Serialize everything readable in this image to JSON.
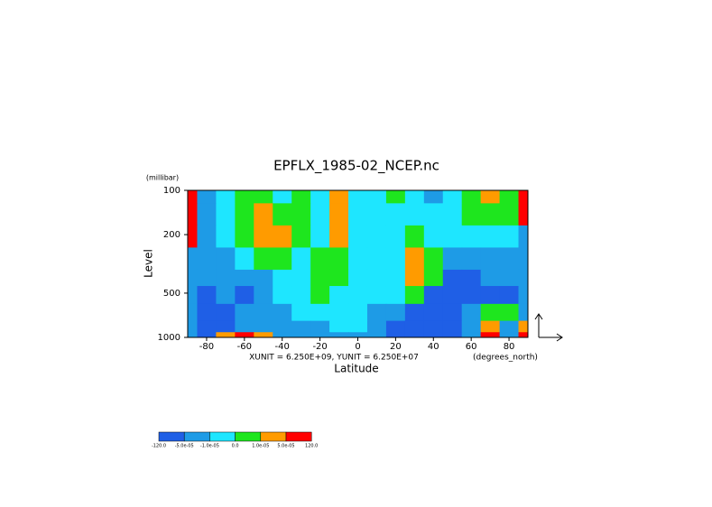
{
  "chart_data": {
    "type": "contour",
    "title": "EPFLX_1985-02_NCEP.nc",
    "y_unit_label": "(millibar)",
    "ylabel": "Level",
    "xlabel": "Latitude",
    "x_unit_label": "(degrees_north)",
    "vector_scale_label": "XUNIT = 6.250E+09, YUNIT = 6.250E+07",
    "xlim": [
      -90,
      90
    ],
    "xticks": [
      -80,
      -60,
      -40,
      -20,
      0,
      20,
      40,
      60,
      80
    ],
    "ylim": [
      1000,
      100
    ],
    "yticks": [
      100,
      200,
      500,
      1000
    ],
    "ylog": true,
    "colorbar": {
      "colors": [
        "#1f5fe6",
        "#1e9be6",
        "#1ee6ff",
        "#1ee61e",
        "#ff9b00",
        "#ff0000"
      ],
      "labels": [
        "-120.0",
        "-5.0e-05",
        "-1.0e-05",
        "0.0",
        "1.0e-05",
        "5.0e-05",
        "120.0"
      ]
    },
    "field": {
      "lat": [
        -90,
        -80,
        -70,
        -60,
        -50,
        -40,
        -30,
        -20,
        -10,
        0,
        10,
        20,
        30,
        40,
        50,
        60,
        70,
        80,
        90
      ],
      "level": [
        100,
        150,
        200,
        300,
        400,
        500,
        700,
        850,
        1000
      ],
      "values": [
        [
          0.0001,
          -3e-05,
          -5e-06,
          5e-06,
          5e-06,
          -5e-06,
          5e-06,
          -5e-06,
          3e-05,
          -5e-06,
          -5e-06,
          5e-06,
          -5e-06,
          -3e-05,
          -5e-06,
          5e-06,
          3e-05,
          5e-06,
          0.0001
        ],
        [
          0.0001,
          -3e-05,
          -5e-06,
          5e-06,
          3e-05,
          5e-06,
          5e-06,
          -5e-06,
          3e-05,
          -5e-06,
          -5e-06,
          -5e-06,
          -5e-06,
          -5e-06,
          -5e-06,
          5e-06,
          5e-06,
          5e-06,
          0.0001
        ],
        [
          0.0001,
          -3e-05,
          -5e-06,
          5e-06,
          3e-05,
          3e-05,
          5e-06,
          -5e-06,
          3e-05,
          -5e-06,
          -5e-06,
          -5e-06,
          5e-06,
          -5e-06,
          -5e-06,
          -5e-06,
          -5e-06,
          -5e-06,
          -3e-05
        ],
        [
          -3e-05,
          -3e-05,
          -3e-05,
          -5e-06,
          5e-06,
          5e-06,
          -5e-06,
          5e-06,
          5e-06,
          -5e-06,
          -5e-06,
          -5e-06,
          3e-05,
          5e-06,
          -3e-05,
          -3e-05,
          -3e-05,
          -3e-05,
          -3e-05
        ],
        [
          -3e-05,
          -3e-05,
          -3e-05,
          -3e-05,
          -3e-05,
          -5e-06,
          -5e-06,
          5e-06,
          5e-06,
          -5e-06,
          -5e-06,
          -5e-06,
          3e-05,
          5e-06,
          -0.0001,
          -0.0001,
          -3e-05,
          -3e-05,
          -3e-05
        ],
        [
          -3e-05,
          -0.0001,
          -3e-05,
          -0.0001,
          -3e-05,
          -5e-06,
          -5e-06,
          5e-06,
          -5e-06,
          -5e-06,
          -5e-06,
          -5e-06,
          5e-06,
          -0.0001,
          -0.0001,
          -0.0001,
          -0.0001,
          -0.0001,
          -3e-05
        ],
        [
          -3e-05,
          -0.0001,
          -0.0001,
          -3e-05,
          -3e-05,
          -3e-05,
          -5e-06,
          -5e-06,
          -5e-06,
          -5e-06,
          -3e-05,
          -3e-05,
          -0.0001,
          -0.0001,
          -0.0001,
          -3e-05,
          5e-06,
          5e-06,
          -3e-05
        ],
        [
          -3e-05,
          -0.0001,
          -0.0001,
          -3e-05,
          -3e-05,
          -3e-05,
          -3e-05,
          -3e-05,
          -5e-06,
          -5e-06,
          -3e-05,
          -0.0001,
          -0.0001,
          -0.0001,
          -0.0001,
          -3e-05,
          3e-05,
          -3e-05,
          3e-05
        ],
        [
          -3e-05,
          -0.0001,
          3e-05,
          0.0001,
          3e-05,
          -3e-05,
          -3e-05,
          -3e-05,
          -3e-05,
          -3e-05,
          -3e-05,
          -0.0001,
          -0.0001,
          -0.0001,
          -0.0001,
          -3e-05,
          0.0001,
          -3e-05,
          0.0001
        ]
      ]
    }
  }
}
